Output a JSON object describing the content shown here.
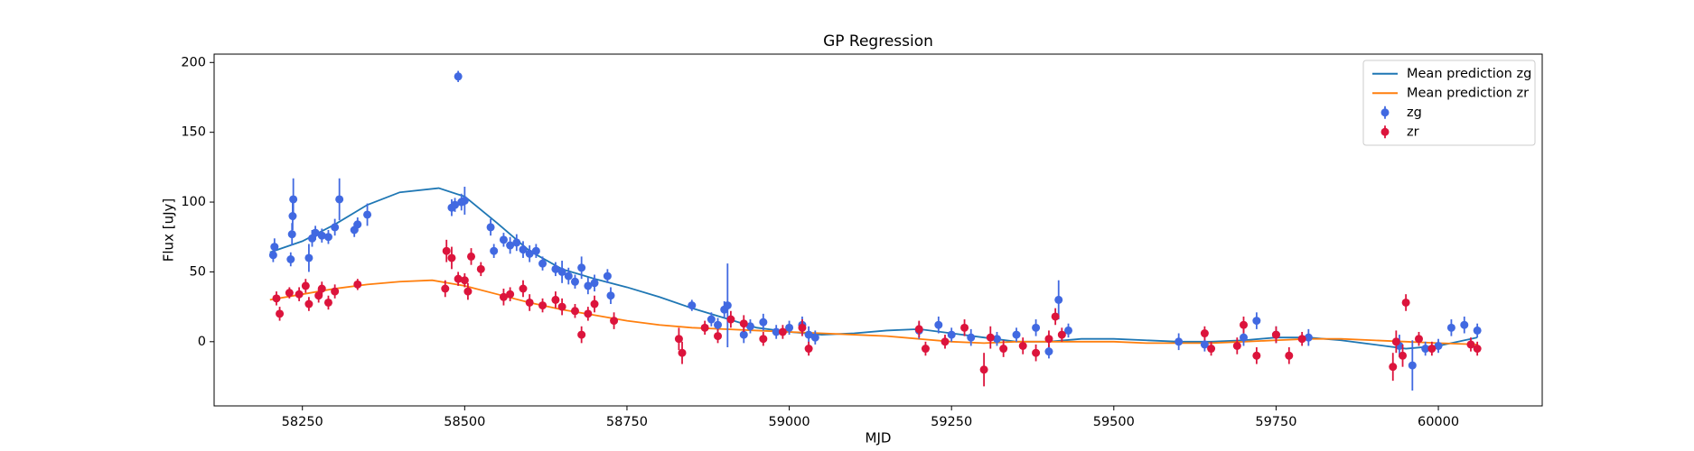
{
  "chart_data": {
    "type": "scatter",
    "title": "GP Regression",
    "x_label": "MJD",
    "y_label": "Flux [uJy]",
    "xlim": [
      58114,
      60160
    ],
    "ylim": [
      -46,
      206
    ],
    "xticks": [
      58250,
      58500,
      58750,
      59000,
      59250,
      59500,
      59750,
      60000
    ],
    "yticks": [
      0,
      50,
      100,
      150,
      200
    ],
    "legend": "upper right",
    "series": [
      {
        "name": "Mean prediction zg",
        "mode": "line",
        "color": "#1f77b4",
        "x": [
          58200,
          58250,
          58300,
          58350,
          58400,
          58460,
          58500,
          58550,
          58600,
          58650,
          58700,
          58750,
          58800,
          58850,
          58900,
          58950,
          59000,
          59050,
          59100,
          59150,
          59200,
          59250,
          59300,
          59350,
          59400,
          59450,
          59500,
          59550,
          59600,
          59650,
          59700,
          59750,
          59800,
          59850,
          59900,
          59950,
          60000,
          60050,
          60060
        ],
        "values": [
          64,
          72,
          84,
          98,
          107,
          110,
          104,
          85,
          65,
          52,
          45,
          39,
          32,
          24,
          17,
          10,
          7,
          5,
          6,
          8,
          9,
          6,
          3,
          0,
          0,
          2,
          2,
          1,
          0,
          0,
          1,
          3,
          3,
          1,
          -2,
          -5,
          -3,
          2,
          3
        ]
      },
      {
        "name": "Mean prediction zr",
        "mode": "line",
        "color": "#ff7f0e",
        "x": [
          58200,
          58250,
          58300,
          58350,
          58400,
          58450,
          58500,
          58550,
          58600,
          58650,
          58700,
          58750,
          58800,
          58850,
          58900,
          58950,
          59000,
          59050,
          59100,
          59150,
          59200,
          59250,
          59300,
          59350,
          59400,
          59450,
          59500,
          59550,
          59600,
          59650,
          59700,
          59750,
          59800,
          59850,
          59900,
          59950,
          60000,
          60060
        ],
        "values": [
          30,
          34,
          38,
          41,
          43,
          44,
          40,
          34,
          28,
          23,
          19,
          15,
          12,
          10,
          9,
          8,
          7,
          6,
          5,
          4,
          2,
          0,
          -1,
          0,
          0,
          0,
          0,
          -1,
          -1,
          -1,
          0,
          1,
          2,
          2,
          1,
          0,
          -1,
          -2
        ]
      },
      {
        "name": "zg",
        "mode": "errorbar",
        "color": "#4169e1",
        "x": [
          58205,
          58207,
          58232,
          58234,
          58235,
          58236,
          58260,
          58265,
          58270,
          58280,
          58290,
          58300,
          58307,
          58330,
          58335,
          58350,
          58480,
          58485,
          58490,
          58495,
          58500,
          58540,
          58545,
          58560,
          58570,
          58580,
          58590,
          58600,
          58610,
          58620,
          58640,
          58650,
          58660,
          58670,
          58680,
          58690,
          58700,
          58720,
          58725,
          58850,
          58880,
          58890,
          58900,
          58905,
          58930,
          58940,
          58960,
          58980,
          59000,
          59020,
          59030,
          59040,
          59200,
          59230,
          59250,
          59280,
          59320,
          59350,
          59380,
          59400,
          59415,
          59430,
          59600,
          59640,
          59700,
          59720,
          59750,
          59800,
          59940,
          59960,
          59980,
          60000,
          60020,
          60040,
          60060
        ],
        "values": [
          62,
          68,
          59,
          77,
          90,
          102,
          60,
          74,
          78,
          76,
          75,
          82,
          102,
          80,
          84,
          91,
          96,
          98,
          190,
          100,
          101,
          82,
          65,
          73,
          69,
          71,
          66,
          63,
          65,
          56,
          52,
          50,
          47,
          43,
          53,
          40,
          42,
          47,
          33,
          26,
          16,
          12,
          23,
          26,
          5,
          11,
          14,
          7,
          10,
          12,
          5,
          3,
          8,
          12,
          5,
          3,
          2,
          5,
          10,
          -7,
          30,
          8,
          0,
          -2,
          3,
          15,
          5,
          3,
          -3,
          -17,
          -5,
          -3,
          10,
          12,
          8
        ],
        "errors": [
          5,
          6,
          5,
          8,
          10,
          15,
          10,
          6,
          5,
          5,
          5,
          6,
          15,
          5,
          5,
          8,
          6,
          5,
          4,
          6,
          10,
          6,
          5,
          5,
          6,
          6,
          6,
          6,
          5,
          5,
          5,
          8,
          6,
          5,
          8,
          6,
          6,
          5,
          6,
          4,
          5,
          5,
          6,
          30,
          6,
          5,
          6,
          5,
          5,
          6,
          6,
          5,
          6,
          6,
          5,
          6,
          5,
          5,
          6,
          5,
          14,
          5,
          6,
          5,
          6,
          6,
          6,
          6,
          8,
          18,
          5,
          5,
          6,
          6,
          5
        ]
      },
      {
        "name": "zr",
        "mode": "errorbar",
        "color": "#dc143c",
        "x": [
          58210,
          58215,
          58230,
          58245,
          58255,
          58260,
          58275,
          58280,
          58290,
          58300,
          58335,
          58470,
          58472,
          58480,
          58490,
          58500,
          58505,
          58510,
          58525,
          58560,
          58570,
          58590,
          58600,
          58620,
          58640,
          58650,
          58670,
          58680,
          58690,
          58700,
          58730,
          58830,
          58835,
          58870,
          58890,
          58910,
          58930,
          58960,
          58990,
          59020,
          59030,
          59200,
          59210,
          59240,
          59270,
          59300,
          59310,
          59330,
          59360,
          59380,
          59400,
          59410,
          59420,
          59640,
          59650,
          59690,
          59700,
          59720,
          59750,
          59770,
          59790,
          59930,
          59935,
          59945,
          59950,
          59970,
          59990,
          60050,
          60060
        ],
        "values": [
          31,
          20,
          35,
          34,
          40,
          27,
          33,
          38,
          28,
          36,
          41,
          38,
          65,
          60,
          45,
          44,
          36,
          61,
          52,
          32,
          34,
          38,
          28,
          26,
          30,
          25,
          22,
          5,
          20,
          27,
          15,
          2,
          -8,
          10,
          4,
          16,
          13,
          2,
          7,
          10,
          -5,
          9,
          -5,
          0,
          10,
          -20,
          3,
          -5,
          -3,
          -8,
          2,
          18,
          5,
          6,
          -5,
          -3,
          12,
          -10,
          5,
          -10,
          2,
          -18,
          0,
          -10,
          28,
          2,
          -5,
          -2,
          -5
        ],
        "errors": [
          5,
          5,
          4,
          5,
          5,
          5,
          5,
          5,
          5,
          5,
          4,
          6,
          8,
          8,
          5,
          5,
          6,
          6,
          5,
          6,
          5,
          6,
          6,
          5,
          6,
          6,
          5,
          6,
          5,
          6,
          6,
          8,
          8,
          5,
          5,
          6,
          6,
          5,
          5,
          6,
          5,
          6,
          5,
          5,
          6,
          12,
          8,
          6,
          6,
          6,
          6,
          6,
          5,
          5,
          5,
          6,
          6,
          6,
          6,
          6,
          5,
          10,
          8,
          8,
          6,
          5,
          5,
          5,
          5
        ]
      }
    ]
  }
}
